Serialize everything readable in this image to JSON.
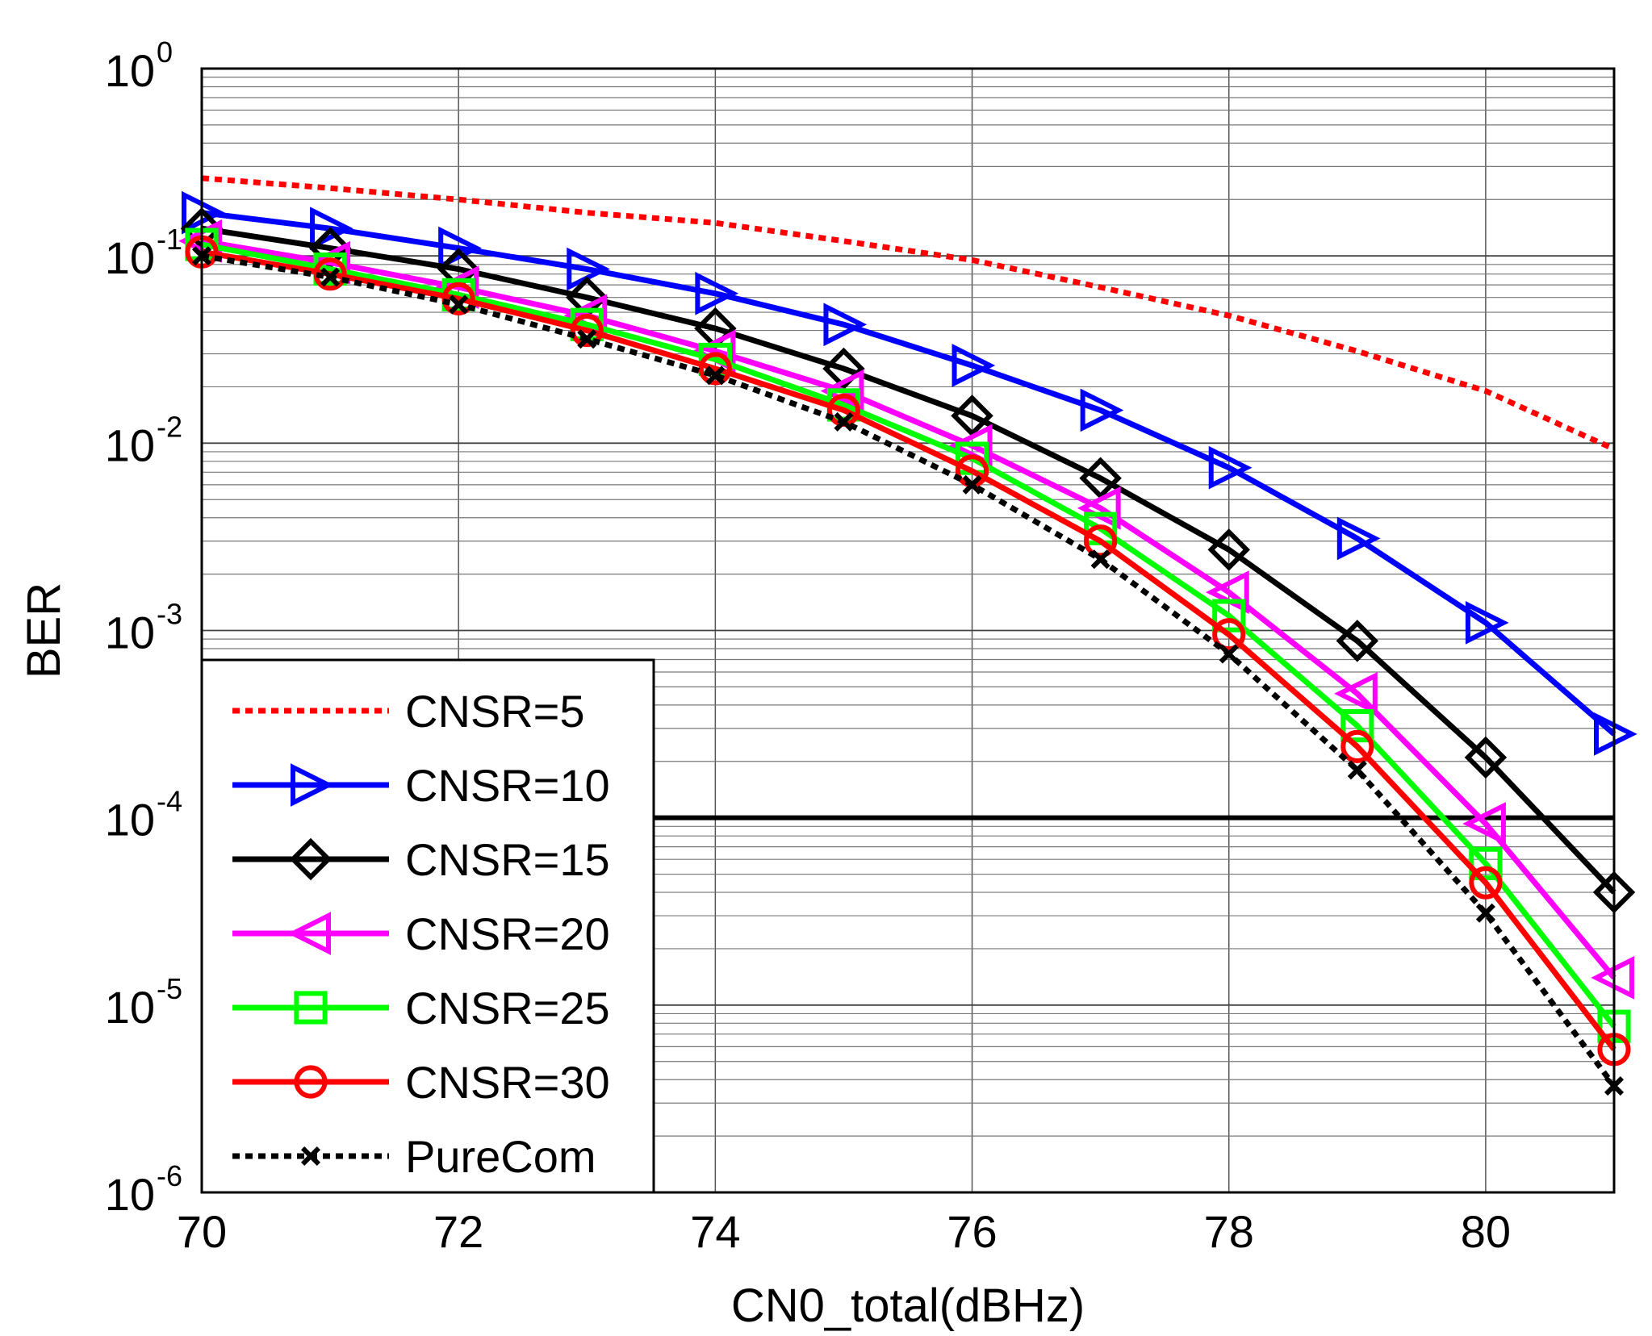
{
  "chart_data": {
    "type": "line",
    "title": "",
    "xlabel": "CN0_total(dBHz)",
    "ylabel": "BER",
    "xscale": "linear",
    "yscale": "log",
    "xlim": [
      70,
      81
    ],
    "ylim": [
      1e-06,
      1
    ],
    "grid": true,
    "x_ticks": [
      "70",
      "72",
      "74",
      "76",
      "78",
      "80"
    ],
    "y_ticks": [
      {
        "base": "10",
        "exp": "0"
      },
      {
        "base": "10",
        "exp": "-1"
      },
      {
        "base": "10",
        "exp": "-2"
      },
      {
        "base": "10",
        "exp": "-3"
      },
      {
        "base": "10",
        "exp": "-4"
      },
      {
        "base": "10",
        "exp": "-5"
      },
      {
        "base": "10",
        "exp": "-6"
      }
    ],
    "reference_line": {
      "y": 0.0001,
      "color": "#000000"
    },
    "legend_position": "bottom-left",
    "x": [
      70,
      71,
      72,
      73,
      74,
      75,
      76,
      77,
      78,
      79,
      80,
      81
    ],
    "series": [
      {
        "name": "CNSR=5",
        "color": "#ff0000",
        "style": "dotted",
        "marker": "none",
        "values": [
          0.26,
          0.23,
          0.2,
          0.17,
          0.15,
          0.12,
          0.095,
          0.068,
          0.048,
          0.031,
          0.019,
          0.0093
        ]
      },
      {
        "name": "CNSR=10",
        "color": "#0000ff",
        "style": "solid",
        "marker": "triangle-right",
        "values": [
          0.17,
          0.14,
          0.11,
          0.085,
          0.063,
          0.043,
          0.026,
          0.015,
          0.0074,
          0.0031,
          0.0011,
          0.00028
        ]
      },
      {
        "name": "CNSR=15",
        "color": "#000000",
        "style": "solid",
        "marker": "diamond",
        "values": [
          0.14,
          0.11,
          0.085,
          0.06,
          0.041,
          0.025,
          0.014,
          0.0065,
          0.0027,
          0.00088,
          0.00021,
          4e-05
        ]
      },
      {
        "name": "CNSR=20",
        "color": "#ff00ff",
        "style": "solid",
        "marker": "triangle-left",
        "values": [
          0.12,
          0.092,
          0.068,
          0.048,
          0.031,
          0.019,
          0.0097,
          0.0045,
          0.0016,
          0.00046,
          9.3e-05,
          1.4e-05
        ]
      },
      {
        "name": "CNSR=25",
        "color": "#00ff00",
        "style": "solid",
        "marker": "square",
        "values": [
          0.115,
          0.085,
          0.062,
          0.043,
          0.028,
          0.016,
          0.0083,
          0.0035,
          0.0012,
          0.00031,
          5.7e-05,
          7.7e-06
        ]
      },
      {
        "name": "CNSR=30",
        "color": "#ff0000",
        "style": "solid",
        "marker": "circle",
        "values": [
          0.105,
          0.08,
          0.059,
          0.04,
          0.025,
          0.015,
          0.0071,
          0.003,
          0.00095,
          0.00024,
          4.5e-05,
          5.8e-06
        ]
      },
      {
        "name": "PureCom",
        "color": "#000000",
        "style": "dotted",
        "marker": "x",
        "values": [
          0.1,
          0.077,
          0.055,
          0.036,
          0.023,
          0.013,
          0.006,
          0.0024,
          0.00075,
          0.00018,
          3.1e-05,
          3.7e-06
        ]
      }
    ]
  }
}
